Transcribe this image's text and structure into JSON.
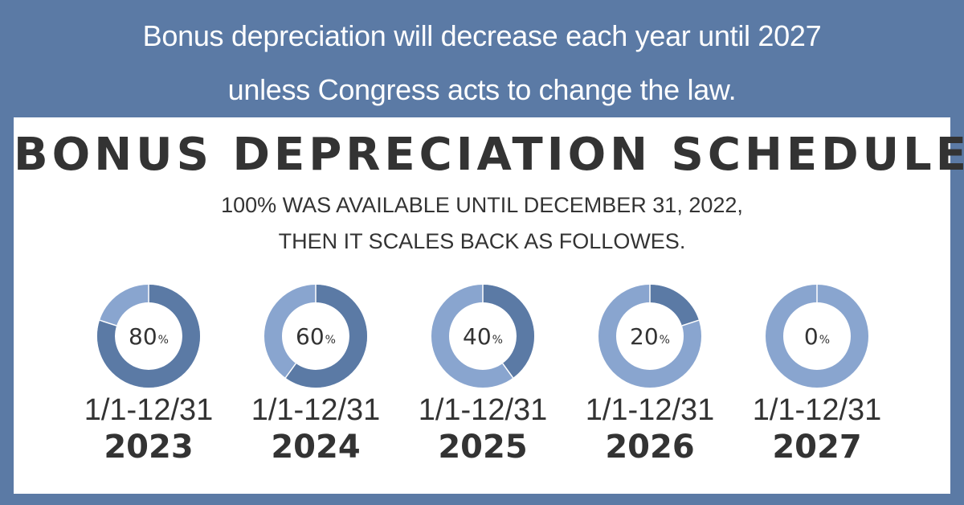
{
  "banner": {
    "line1": "Bonus depreciation will decrease each year until 2027",
    "line2": "unless Congress acts to change the law."
  },
  "panel": {
    "title": "BONUS DEPRECIATION SCHEDULE",
    "subtitle_line1": "100% WAS AVAILABLE UNTIL DECEMBER 31, 2022,",
    "subtitle_line2": "THEN IT SCALES BACK AS FOLLOWES."
  },
  "colors": {
    "background": "#5b7aa5",
    "panel": "#ffffff",
    "donut_filled": "#5b7aa5",
    "donut_remaining": "#89a5cf",
    "text_dark": "#333333"
  },
  "chart_data": {
    "type": "pie",
    "subtype": "donut",
    "title": "BONUS DEPRECIATION SCHEDULE",
    "unit": "%",
    "items": [
      {
        "value": 80,
        "value_text": "80",
        "unit": "%",
        "range": "1/1-12/31",
        "year": "2023"
      },
      {
        "value": 60,
        "value_text": "60",
        "unit": "%",
        "range": "1/1-12/31",
        "year": "2024"
      },
      {
        "value": 40,
        "value_text": "40",
        "unit": "%",
        "range": "1/1-12/31",
        "year": "2025"
      },
      {
        "value": 20,
        "value_text": "20",
        "unit": "%",
        "range": "1/1-12/31",
        "year": "2026"
      },
      {
        "value": 0,
        "value_text": "0",
        "unit": "%",
        "range": "1/1-12/31",
        "year": "2027"
      }
    ]
  }
}
